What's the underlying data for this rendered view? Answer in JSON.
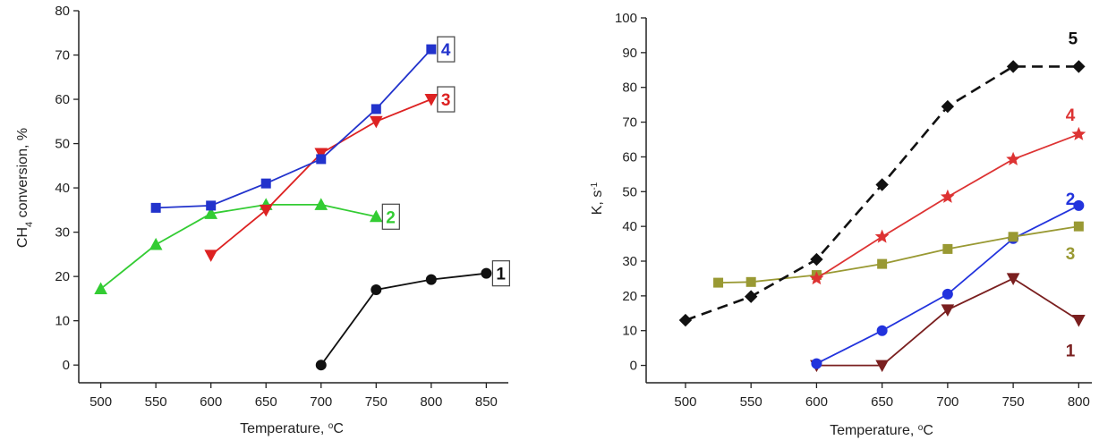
{
  "chart_data": [
    {
      "type": "line",
      "xlabel_main": "Temperature, ",
      "xlabel_sup": "o",
      "xlabel_unit": "C",
      "ylabel_main": "CH",
      "ylabel_sub": "4",
      "ylabel_rest": " conversion, %",
      "xlim": [
        480,
        870
      ],
      "ylim": [
        -4,
        80
      ],
      "xticks": [
        500,
        550,
        600,
        650,
        700,
        750,
        800,
        850
      ],
      "yticks": [
        0,
        10,
        20,
        30,
        40,
        50,
        60,
        70,
        80
      ],
      "grid": false,
      "series": [
        {
          "label": "1",
          "color": "#111111",
          "marker": "circle",
          "dash": false,
          "boxed": true,
          "x": [
            700,
            750,
            800,
            850
          ],
          "y": [
            0,
            17,
            19.3,
            20.7
          ]
        },
        {
          "label": "2",
          "color": "#33cc33",
          "marker": "triangle-up",
          "dash": false,
          "boxed": true,
          "x": [
            500,
            550,
            600,
            650,
            700,
            750
          ],
          "y": [
            17.2,
            27.2,
            34.2,
            36.2,
            36.2,
            33.5
          ]
        },
        {
          "label": "3",
          "color": "#dd2222",
          "marker": "triangle-down",
          "dash": false,
          "boxed": true,
          "x": [
            600,
            650,
            700,
            750,
            800
          ],
          "y": [
            24.8,
            35,
            47.8,
            55,
            60
          ]
        },
        {
          "label": "4",
          "color": "#2233cc",
          "marker": "square",
          "dash": false,
          "boxed": true,
          "x": [
            550,
            600,
            650,
            700,
            750,
            800
          ],
          "y": [
            35.5,
            36,
            41,
            46.5,
            57.8,
            71.3
          ]
        }
      ]
    },
    {
      "type": "line",
      "xlabel_main": "Temperature, ",
      "xlabel_sup": "o",
      "xlabel_unit": "C",
      "ylabel_main": "K, s",
      "ylabel_sup": "-1",
      "xlim": [
        470,
        810
      ],
      "ylim": [
        -5,
        100
      ],
      "xticks": [
        500,
        550,
        600,
        650,
        700,
        750,
        800
      ],
      "yticks": [
        0,
        10,
        20,
        30,
        40,
        50,
        60,
        70,
        80,
        90,
        100
      ],
      "grid": false,
      "series": [
        {
          "label": "1",
          "color": "#7a1f1f",
          "marker": "triangle-down",
          "dash": false,
          "boxed": false,
          "x": [
            600,
            650,
            700,
            750,
            800
          ],
          "y": [
            0,
            0,
            16,
            25,
            13
          ]
        },
        {
          "label": "2",
          "color": "#2233dd",
          "marker": "circle",
          "dash": false,
          "boxed": false,
          "x": [
            600,
            650,
            700,
            750,
            800
          ],
          "y": [
            0.5,
            10,
            20.5,
            36.5,
            46
          ]
        },
        {
          "label": "3",
          "color": "#999933",
          "marker": "square",
          "dash": false,
          "boxed": false,
          "x": [
            525,
            550,
            600,
            650,
            700,
            750,
            800
          ],
          "y": [
            23.8,
            24,
            26,
            29.2,
            33.5,
            37,
            40
          ]
        },
        {
          "label": "4",
          "color": "#dd3333",
          "marker": "star",
          "dash": false,
          "boxed": false,
          "x": [
            600,
            650,
            700,
            750,
            800
          ],
          "y": [
            25,
            37,
            48.5,
            59.3,
            66.5
          ]
        },
        {
          "label": "5",
          "color": "#111111",
          "marker": "diamond",
          "dash": true,
          "boxed": false,
          "x": [
            500,
            550,
            600,
            650,
            700,
            750,
            800
          ],
          "y": [
            13,
            19.8,
            30.5,
            52,
            74.5,
            86,
            86
          ]
        }
      ]
    }
  ]
}
